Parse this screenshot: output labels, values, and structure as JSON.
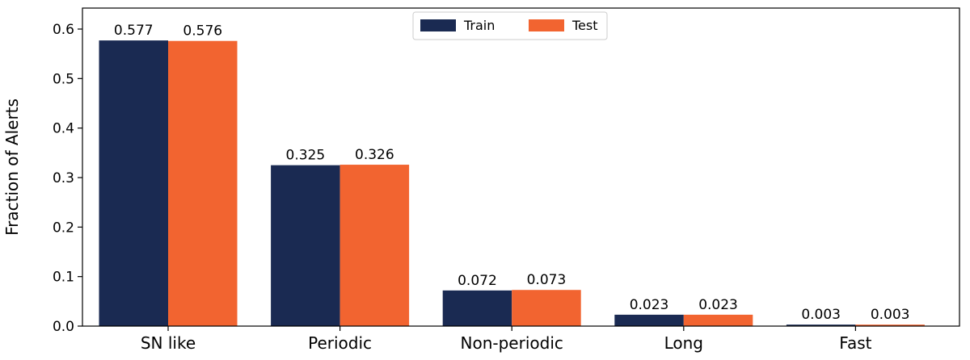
{
  "chart_data": {
    "type": "bar",
    "title": "",
    "xlabel": "",
    "ylabel": "Fraction of Alerts",
    "categories": [
      "SN like",
      "Periodic",
      "Non-periodic",
      "Long",
      "Fast"
    ],
    "series": [
      {
        "name": "Train",
        "color": "#1a2a52",
        "values": [
          0.577,
          0.325,
          0.072,
          0.023,
          0.003
        ],
        "labels": [
          "0.577",
          "0.325",
          "0.072",
          "0.023",
          "0.003"
        ]
      },
      {
        "name": "Test",
        "color": "#f26430",
        "values": [
          0.576,
          0.326,
          0.073,
          0.023,
          0.003
        ],
        "labels": [
          "0.576",
          "0.326",
          "0.073",
          "0.023",
          "0.003"
        ]
      }
    ],
    "ylim": [
      0,
      0.6
    ],
    "yticks": [
      0.0,
      0.1,
      0.2,
      0.3,
      0.4,
      0.5,
      0.6
    ],
    "ytick_labels": [
      "0.0",
      "0.1",
      "0.2",
      "0.3",
      "0.4",
      "0.5",
      "0.6"
    ],
    "grid": false,
    "legend_position": "top-center"
  }
}
